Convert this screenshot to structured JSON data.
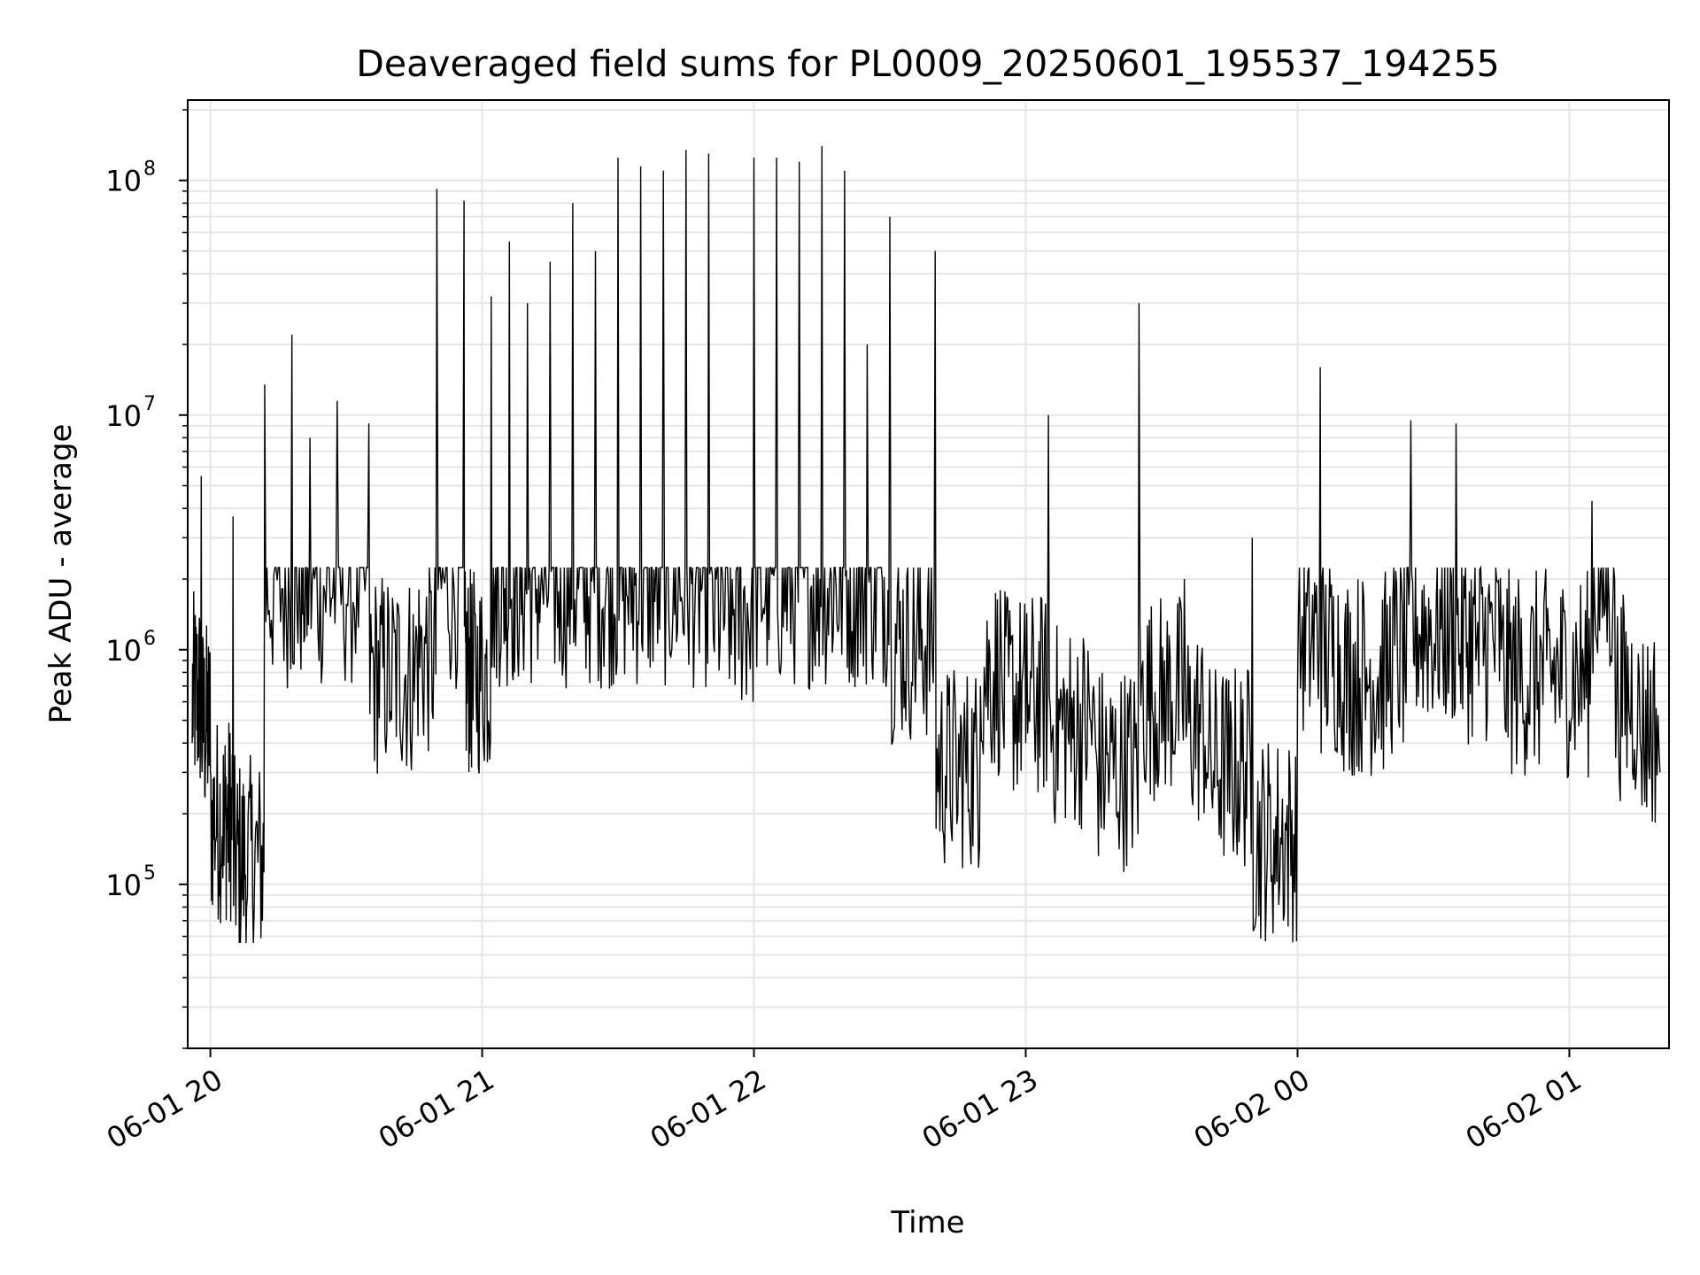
{
  "chart_data": {
    "type": "line",
    "title": "Deaveraged field sums for PL0009_20250601_195537_194255",
    "xlabel": "Time",
    "ylabel": "Peak ADU - average",
    "yscale": "log",
    "ylim": [
      20000,
      220000000
    ],
    "xlim": [
      "2025-06-01 19:55",
      "2025-06-02 01:22"
    ],
    "grid": true,
    "line_color": "#000000",
    "grid_color": "#e6e6e6",
    "x_ticks": [
      {
        "value": "2025-06-01 20:00",
        "label": "06-01 20"
      },
      {
        "value": "2025-06-01 21:00",
        "label": "06-01 21"
      },
      {
        "value": "2025-06-01 22:00",
        "label": "06-01 22"
      },
      {
        "value": "2025-06-01 23:00",
        "label": "06-01 23"
      },
      {
        "value": "2025-06-02 00:00",
        "label": "06-02 00"
      },
      {
        "value": "2025-06-02 01:00",
        "label": "06-02 01"
      }
    ],
    "y_ticks": [
      {
        "value": 100000,
        "base": "10",
        "exp": "5"
      },
      {
        "value": 1000000,
        "base": "10",
        "exp": "6"
      },
      {
        "value": 10000000,
        "base": "10",
        "exp": "7"
      },
      {
        "value": 100000000,
        "base": "10",
        "exp": "8"
      }
    ],
    "series": [
      {
        "x": [
          "2025-06-01 19:56",
          "2025-06-01 19:58",
          "2025-06-01 20:00",
          "2025-06-01 20:03",
          "2025-06-01 20:05",
          "2025-06-01 20:08",
          "2025-06-01 20:12",
          "2025-06-01 20:18",
          "2025-06-01 20:22",
          "2025-06-01 20:28",
          "2025-06-01 20:35",
          "2025-06-01 20:40",
          "2025-06-01 20:45",
          "2025-06-01 20:50",
          "2025-06-01 20:56",
          "2025-06-01 20:58",
          "2025-06-01 21:02",
          "2025-06-01 21:06",
          "2025-06-01 21:10",
          "2025-06-01 21:15",
          "2025-06-01 21:20",
          "2025-06-01 21:25",
          "2025-06-01 21:30",
          "2025-06-01 21:35",
          "2025-06-01 21:40",
          "2025-06-01 21:45",
          "2025-06-01 21:50",
          "2025-06-01 21:55",
          "2025-06-01 22:00",
          "2025-06-01 22:05",
          "2025-06-01 22:10",
          "2025-06-01 22:15",
          "2025-06-01 22:20",
          "2025-06-01 22:25",
          "2025-06-01 22:30",
          "2025-06-01 22:35",
          "2025-06-01 22:40",
          "2025-06-01 22:45",
          "2025-06-01 22:50",
          "2025-06-01 22:55",
          "2025-06-01 23:00",
          "2025-06-01 23:05",
          "2025-06-01 23:10",
          "2025-06-01 23:15",
          "2025-06-01 23:20",
          "2025-06-01 23:25",
          "2025-06-01 23:30",
          "2025-06-01 23:35",
          "2025-06-01 23:40",
          "2025-06-01 23:45",
          "2025-06-01 23:50",
          "2025-06-01 23:55",
          "2025-06-02 00:00",
          "2025-06-02 00:05",
          "2025-06-02 00:10",
          "2025-06-02 00:15",
          "2025-06-02 00:20",
          "2025-06-02 00:25",
          "2025-06-02 00:30",
          "2025-06-02 00:35",
          "2025-06-02 00:40",
          "2025-06-02 00:45",
          "2025-06-02 00:50",
          "2025-06-02 00:55",
          "2025-06-02 01:00",
          "2025-06-02 01:05",
          "2025-06-02 01:10",
          "2025-06-02 01:15",
          "2025-06-02 01:20"
        ],
        "values": [
          400000,
          5500000,
          300000,
          120000,
          3700000,
          80000,
          13500000,
          22000000,
          8000000,
          11500000,
          9200000,
          500000,
          600000,
          92000000,
          82000000,
          500000,
          32000000,
          55000000,
          30000000,
          45000000,
          80000000,
          50000000,
          125000000,
          115000000,
          110000000,
          135000000,
          130000000,
          950000,
          125000000,
          125000000,
          120000000,
          140000000,
          110000000,
          20000000,
          70000000,
          700000,
          50000000,
          200000,
          700000,
          500000,
          400000,
          10000000,
          300000,
          700000,
          200000,
          30000000,
          400000,
          2000000,
          300000,
          200000,
          3000000,
          100000,
          700000,
          16000000,
          600000,
          500000,
          600000,
          9500000,
          800000,
          9200000,
          700000,
          1000000,
          500000,
          900000,
          500000,
          4300000,
          2000000,
          400000,
          300000
        ]
      }
    ]
  }
}
